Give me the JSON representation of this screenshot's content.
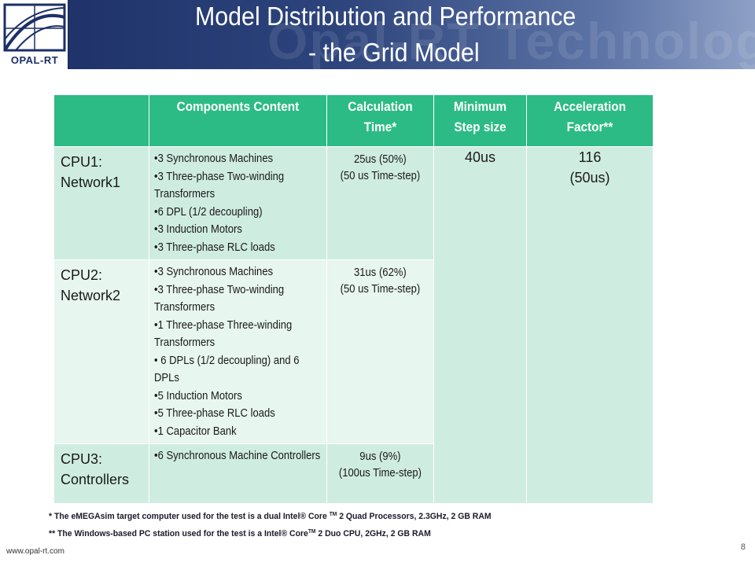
{
  "header": {
    "title_line1": "Model Distribution and Performance",
    "title_line2": "-  the Grid Model",
    "watermark": "Opal-RT Technologies",
    "logo_text": "OPAL-RT"
  },
  "table": {
    "headers": [
      "",
      "Components Content",
      "Calculation Time*",
      "Minimum Step size",
      "Acceleration Factor**"
    ],
    "rows": [
      {
        "cpu_line1": "CPU1:",
        "cpu_line2": "Network1",
        "components": [
          "•3 Synchronous Machines",
          "•3  Three-phase Two-winding Transformers",
          "•6 DPL (1/2 decoupling)",
          "•3 Induction Motors",
          "•3 Three-phase RLC loads"
        ],
        "calc_line1": "25us (50%)",
        "calc_line2": "(50 us Time-step)"
      },
      {
        "cpu_line1": "CPU2:",
        "cpu_line2": "Network2",
        "components": [
          "•3 Synchronous Machines",
          "•3 Three-phase Two-winding Transformers",
          "•1 Three-phase Three-winding Transformers",
          "• 6 DPLs (1/2 decoupling) and 6 DPLs",
          "•5 Induction Motors",
          "•5 Three-phase RLC loads",
          "•1 Capacitor Bank"
        ],
        "calc_line1": "31us (62%)",
        "calc_line2": "(50 us Time-step)"
      },
      {
        "cpu_line1": "CPU3:",
        "cpu_line2": "Controllers",
        "components": [
          "•6 Synchronous Machine Controllers"
        ],
        "calc_line1": "9us (9%)",
        "calc_line2": "(100us Time-step)"
      }
    ],
    "min_step": "40us",
    "accel_value": "116",
    "accel_note": "(50us)"
  },
  "footnotes": {
    "fn1_pre": "* The eMEGAsim target computer used for the test is a dual Intel® Core",
    "fn1_tm": "TM",
    "fn1_post": "2 Quad Processors, 2.3GHz, 2 GB RAM",
    "fn2_pre": "** The Windows-based PC station used for the test is a Intel® Core",
    "fn2_tm": "TM",
    "fn2_post": "2 Duo CPU, 2GHz, 2 GB RAM"
  },
  "footer": {
    "website": "www.opal-rt.com",
    "page_number": "8"
  },
  "colors": {
    "header_dark": "#1c2f66",
    "header_light": "#8ea0c6",
    "table_header": "#2cbb85",
    "row_dark": "#cfece1",
    "row_light": "#e7f6ef"
  }
}
